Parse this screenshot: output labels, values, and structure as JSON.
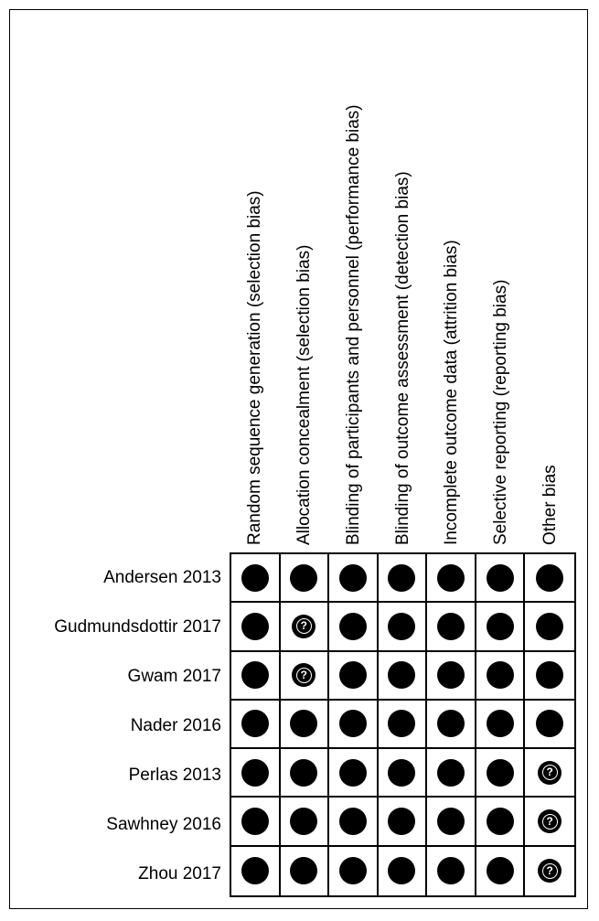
{
  "domains": [
    {
      "label": "Random sequence generation (selection bias)"
    },
    {
      "label": "Allocation concealment (selection bias)"
    },
    {
      "label": "Blinding of participants and personnel (performance bias)"
    },
    {
      "label": "Blinding of outcome assessment (detection bias)"
    },
    {
      "label": "Incomplete outcome data (attrition bias)"
    },
    {
      "label": "Selective reporting (reporting bias)"
    },
    {
      "label": "Other bias"
    }
  ],
  "studies": [
    {
      "label": "Andersen 2013",
      "ratings": [
        "filled",
        "filled",
        "filled",
        "filled",
        "filled",
        "filled",
        "filled"
      ]
    },
    {
      "label": "Gudmundsdottir 2017",
      "ratings": [
        "filled",
        "unclear",
        "filled",
        "filled",
        "filled",
        "filled",
        "filled"
      ]
    },
    {
      "label": "Gwam 2017",
      "ratings": [
        "filled",
        "unclear",
        "filled",
        "filled",
        "filled",
        "filled",
        "filled"
      ]
    },
    {
      "label": "Nader 2016",
      "ratings": [
        "filled",
        "filled",
        "filled",
        "filled",
        "filled",
        "filled",
        "filled"
      ]
    },
    {
      "label": "Perlas 2013",
      "ratings": [
        "filled",
        "filled",
        "filled",
        "filled",
        "filled",
        "filled",
        "unclear"
      ]
    },
    {
      "label": "Sawhney 2016",
      "ratings": [
        "filled",
        "filled",
        "filled",
        "filled",
        "filled",
        "filled",
        "unclear"
      ]
    },
    {
      "label": "Zhou 2017",
      "ratings": [
        "filled",
        "filled",
        "filled",
        "filled",
        "filled",
        "filled",
        "unclear"
      ]
    }
  ],
  "symbols": {
    "unclear_glyph": "?",
    "filled_icon": "filled-circle-icon",
    "unclear_icon": "question-mark-icon",
    "dot_color": "#000000",
    "glyph_color": "#ffffff"
  }
}
